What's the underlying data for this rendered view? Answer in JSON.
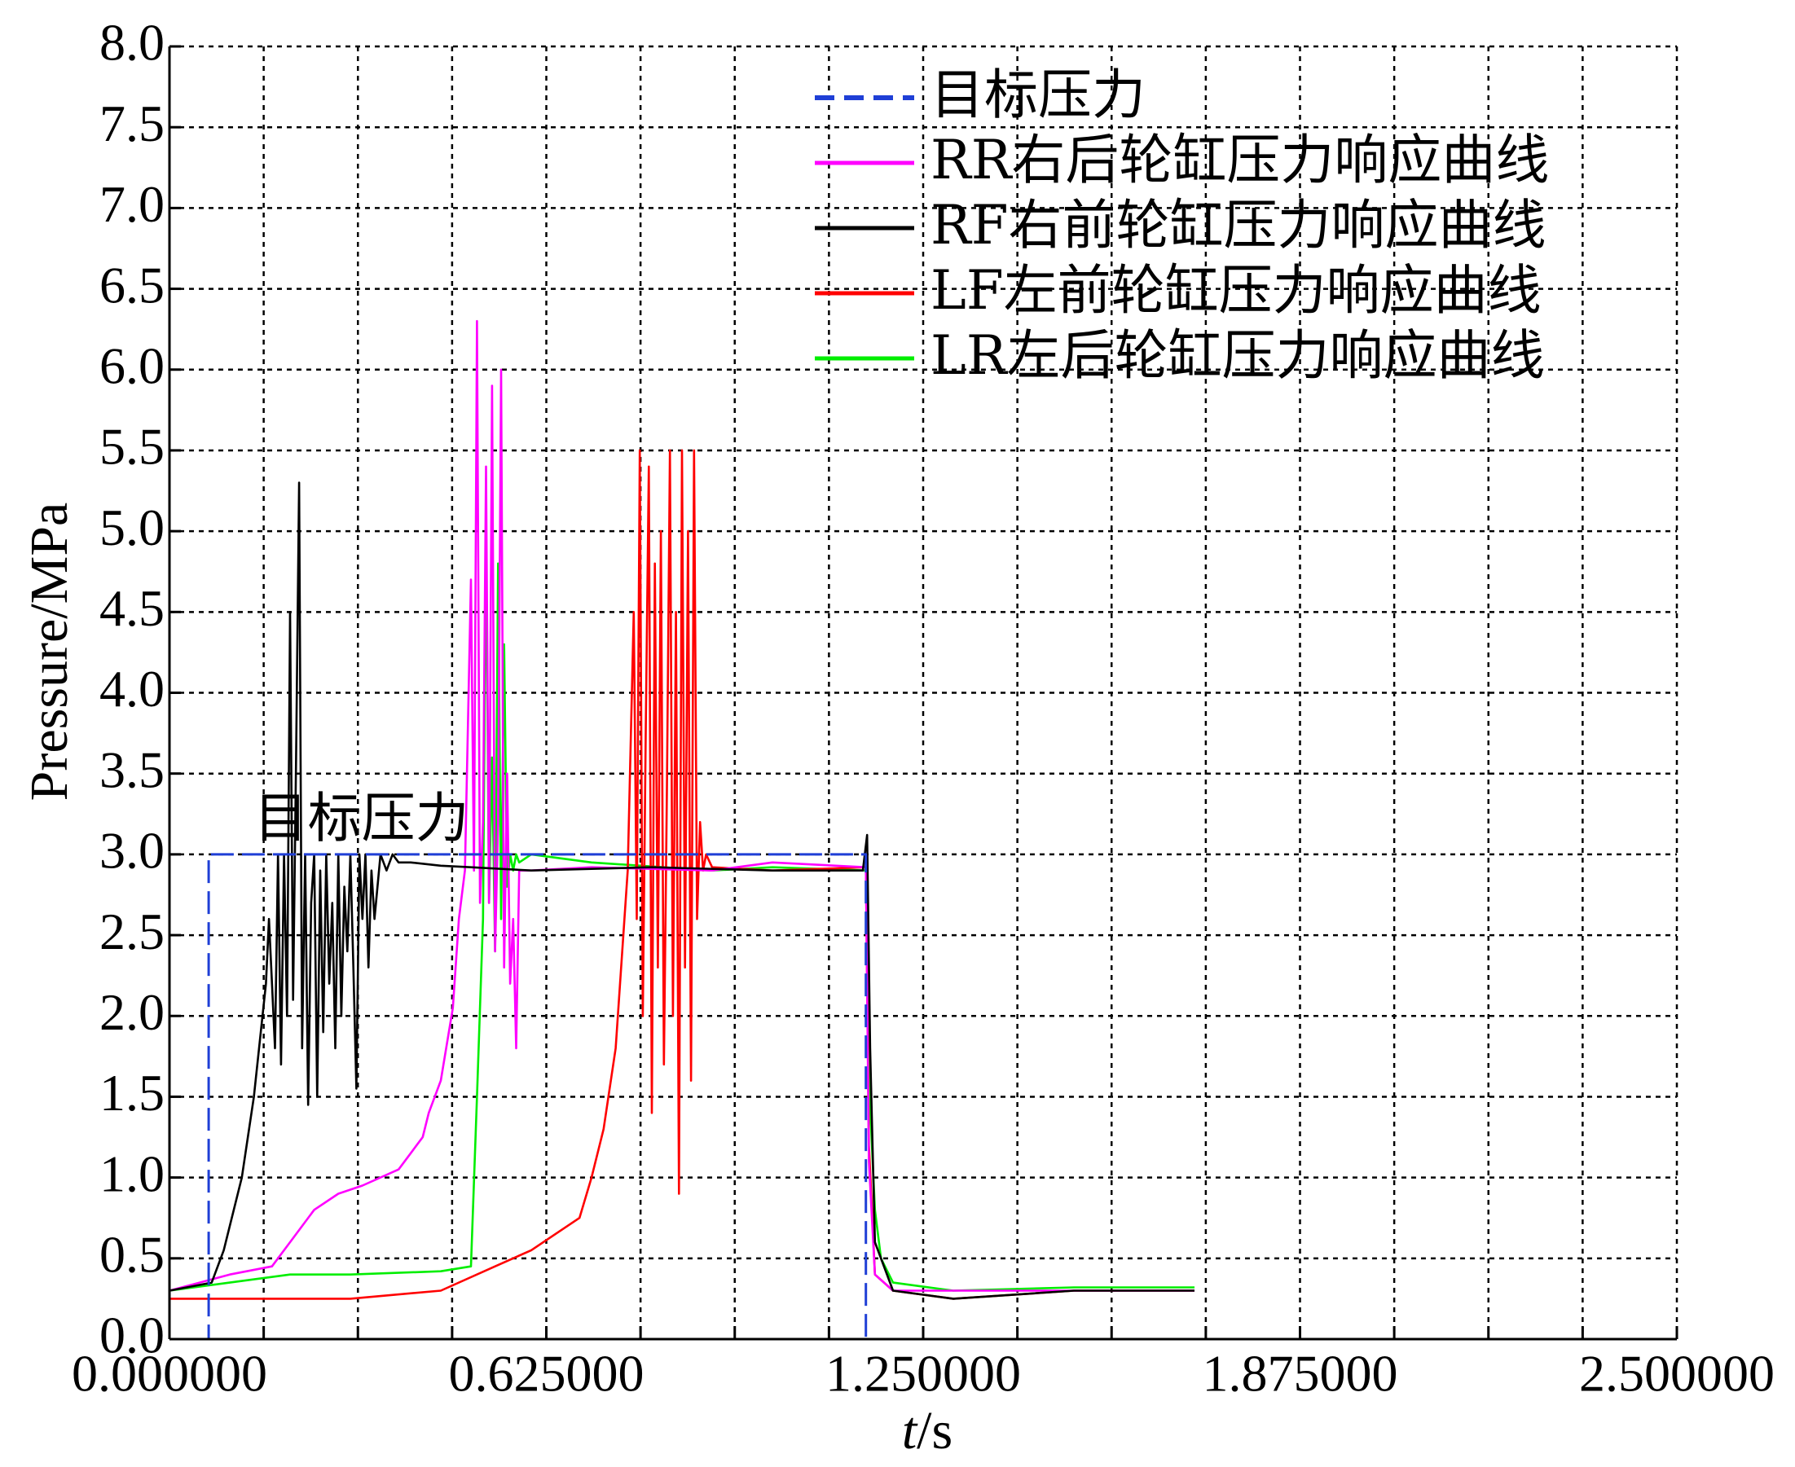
{
  "chart_data": {
    "type": "line",
    "xlabel_italic": "t",
    "xlabel_unit": "/s",
    "ylabel": "Pressure/MPa",
    "xlim": [
      0,
      2.5
    ],
    "ylim": [
      0,
      8
    ],
    "xticks": [
      0,
      0.15625,
      0.3125,
      0.46875,
      0.625,
      0.78125,
      0.9375,
      1.09375,
      1.25,
      1.40625,
      1.5625,
      1.71875,
      1.875,
      2.03125,
      2.1875,
      2.34375,
      2.5
    ],
    "xtick_labels": [
      "0.000000",
      "0.625000",
      "1.250000",
      "1.875000",
      "2.500000"
    ],
    "xtick_label_values": [
      0,
      0.625,
      1.25,
      1.875,
      2.5
    ],
    "yticks": [
      0,
      0.5,
      1,
      1.5,
      2,
      2.5,
      3,
      3.5,
      4,
      4.5,
      5,
      5.5,
      6,
      6.5,
      7,
      7.5,
      8
    ],
    "ytick_labels": [
      "0.0",
      "0.5",
      "1.0",
      "1.5",
      "2.0",
      "2.5",
      "3.0",
      "3.5",
      "4.0",
      "4.5",
      "5.0",
      "5.5",
      "6.0",
      "6.5",
      "7.0",
      "7.5",
      "8.0"
    ],
    "grid": true,
    "legend_position": "top-right",
    "annotation": {
      "text": "目标压力",
      "x": 0.14,
      "y": 3.05
    },
    "series": [
      {
        "name": "目标压力",
        "color": "#1f3fd6",
        "dash": true,
        "x": [
          0,
          0.065,
          0.065,
          1.155,
          1.155,
          1.715
        ],
        "y": [
          0,
          0,
          3.0,
          3.0,
          0,
          0
        ]
      },
      {
        "name": "RR右后轮缸压力响应曲线",
        "color": "#ff00ff",
        "dash": false,
        "x": [
          0,
          0.1,
          0.17,
          0.2,
          0.24,
          0.28,
          0.32,
          0.38,
          0.42,
          0.43,
          0.45,
          0.47,
          0.48,
          0.49,
          0.495,
          0.5,
          0.505,
          0.51,
          0.515,
          0.52,
          0.525,
          0.53,
          0.535,
          0.54,
          0.545,
          0.55,
          0.555,
          0.56,
          0.565,
          0.57,
          0.575,
          0.58,
          0.6,
          0.7,
          0.9,
          1.0,
          1.155,
          1.16,
          1.17,
          1.2,
          1.3,
          1.5,
          1.7
        ],
        "y": [
          0.3,
          0.4,
          0.45,
          0.6,
          0.8,
          0.9,
          0.95,
          1.05,
          1.25,
          1.4,
          1.6,
          2.05,
          2.6,
          2.9,
          3.8,
          4.7,
          2.9,
          6.3,
          2.7,
          3.2,
          5.4,
          2.7,
          5.9,
          2.4,
          3.2,
          6.0,
          2.3,
          3.5,
          2.2,
          2.6,
          1.8,
          2.9,
          2.9,
          2.92,
          2.9,
          2.95,
          2.92,
          1.1,
          0.4,
          0.3,
          0.3,
          0.3,
          0.3
        ]
      },
      {
        "name": "RF右前轮缸压力响应曲线",
        "color": "#000000",
        "dash": false,
        "x": [
          0,
          0.07,
          0.09,
          0.12,
          0.14,
          0.16,
          0.165,
          0.175,
          0.18,
          0.185,
          0.19,
          0.195,
          0.2,
          0.205,
          0.21,
          0.215,
          0.22,
          0.225,
          0.23,
          0.235,
          0.24,
          0.245,
          0.25,
          0.255,
          0.26,
          0.265,
          0.27,
          0.275,
          0.28,
          0.285,
          0.29,
          0.295,
          0.3,
          0.305,
          0.31,
          0.315,
          0.32,
          0.325,
          0.33,
          0.335,
          0.34,
          0.35,
          0.36,
          0.37,
          0.38,
          0.4,
          0.45,
          0.5,
          0.6,
          0.8,
          1.0,
          1.15,
          1.157,
          1.162,
          1.17,
          1.2,
          1.3,
          1.5,
          1.7
        ],
        "y": [
          0.3,
          0.35,
          0.55,
          1.0,
          1.5,
          2.2,
          2.6,
          1.8,
          3.0,
          1.7,
          3.0,
          2.0,
          4.5,
          2.1,
          3.6,
          5.3,
          1.8,
          3.0,
          1.45,
          2.7,
          3.0,
          1.5,
          2.9,
          1.9,
          3.0,
          2.2,
          2.7,
          1.8,
          3.0,
          2.0,
          2.8,
          2.4,
          3.0,
          2.3,
          1.55,
          3.0,
          2.6,
          3.0,
          2.3,
          2.9,
          2.6,
          3.0,
          2.9,
          3.0,
          2.95,
          2.95,
          2.93,
          2.92,
          2.9,
          2.92,
          2.9,
          2.9,
          3.12,
          1.8,
          0.6,
          0.3,
          0.25,
          0.3,
          0.3
        ]
      },
      {
        "name": "LF左前轮缸压力响应曲线",
        "color": "#ff0000",
        "dash": false,
        "x": [
          0,
          0.3,
          0.45,
          0.54,
          0.6,
          0.68,
          0.7,
          0.72,
          0.74,
          0.76,
          0.77,
          0.775,
          0.78,
          0.785,
          0.79,
          0.795,
          0.8,
          0.805,
          0.81,
          0.815,
          0.82,
          0.825,
          0.83,
          0.835,
          0.84,
          0.845,
          0.85,
          0.855,
          0.86,
          0.865,
          0.87,
          0.875,
          0.88,
          0.885,
          0.89,
          0.9,
          1.0,
          1.155,
          1.16,
          1.17,
          1.2,
          1.3,
          1.5,
          1.7
        ],
        "y": [
          0.25,
          0.25,
          0.3,
          0.45,
          0.55,
          0.75,
          1.0,
          1.3,
          1.8,
          2.9,
          4.5,
          2.6,
          5.5,
          2.0,
          3.8,
          5.4,
          1.4,
          4.8,
          2.3,
          5.0,
          1.7,
          3.4,
          5.5,
          2.0,
          4.5,
          0.9,
          5.5,
          2.3,
          5.0,
          1.6,
          5.5,
          2.6,
          3.2,
          2.9,
          3.0,
          2.92,
          2.9,
          2.92,
          1.2,
          0.4,
          0.3,
          0.25,
          0.3,
          0.3
        ]
      },
      {
        "name": "LR左后轮缸压力响应曲线",
        "color": "#00ee00",
        "dash": false,
        "x": [
          0,
          0.1,
          0.2,
          0.3,
          0.45,
          0.5,
          0.51,
          0.52,
          0.525,
          0.53,
          0.535,
          0.54,
          0.545,
          0.55,
          0.555,
          0.56,
          0.565,
          0.57,
          0.575,
          0.58,
          0.6,
          0.7,
          0.9,
          1.0,
          1.155,
          1.16,
          1.17,
          1.18,
          1.2,
          1.3,
          1.5,
          1.7
        ],
        "y": [
          0.3,
          0.35,
          0.4,
          0.4,
          0.42,
          0.45,
          1.5,
          2.6,
          5.0,
          2.7,
          3.6,
          2.4,
          4.8,
          2.6,
          4.3,
          2.8,
          3.0,
          2.9,
          3.0,
          2.95,
          3.0,
          2.95,
          2.9,
          2.92,
          2.9,
          1.6,
          0.8,
          0.5,
          0.35,
          0.3,
          0.32,
          0.32
        ]
      }
    ]
  }
}
